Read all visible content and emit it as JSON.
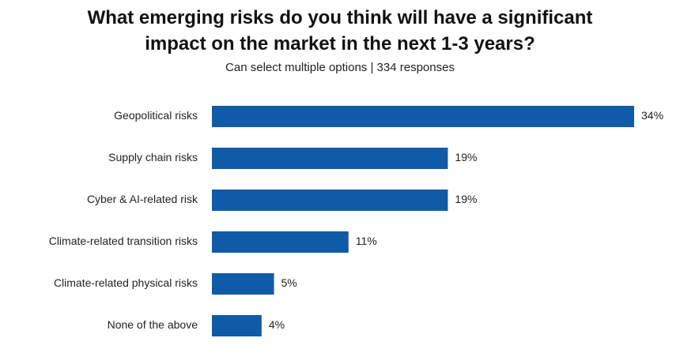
{
  "chart_data": {
    "type": "bar",
    "orientation": "horizontal",
    "title": "What emerging risks do you think will have a significant impact on the market in the next 1-3 years?",
    "subtitle": "Can select multiple options | 334 responses",
    "categories": [
      "Geopolitical risks",
      "Supply chain risks",
      "Cyber & AI-related risk",
      "Climate-related transition risks",
      "Climate-related physical risks",
      "None of the above"
    ],
    "values": [
      34,
      19,
      19,
      11,
      5,
      4
    ],
    "value_labels": [
      "34%",
      "19%",
      "19%",
      "11%",
      "5%",
      "4%"
    ],
    "color": "#0f5ba8"
  }
}
